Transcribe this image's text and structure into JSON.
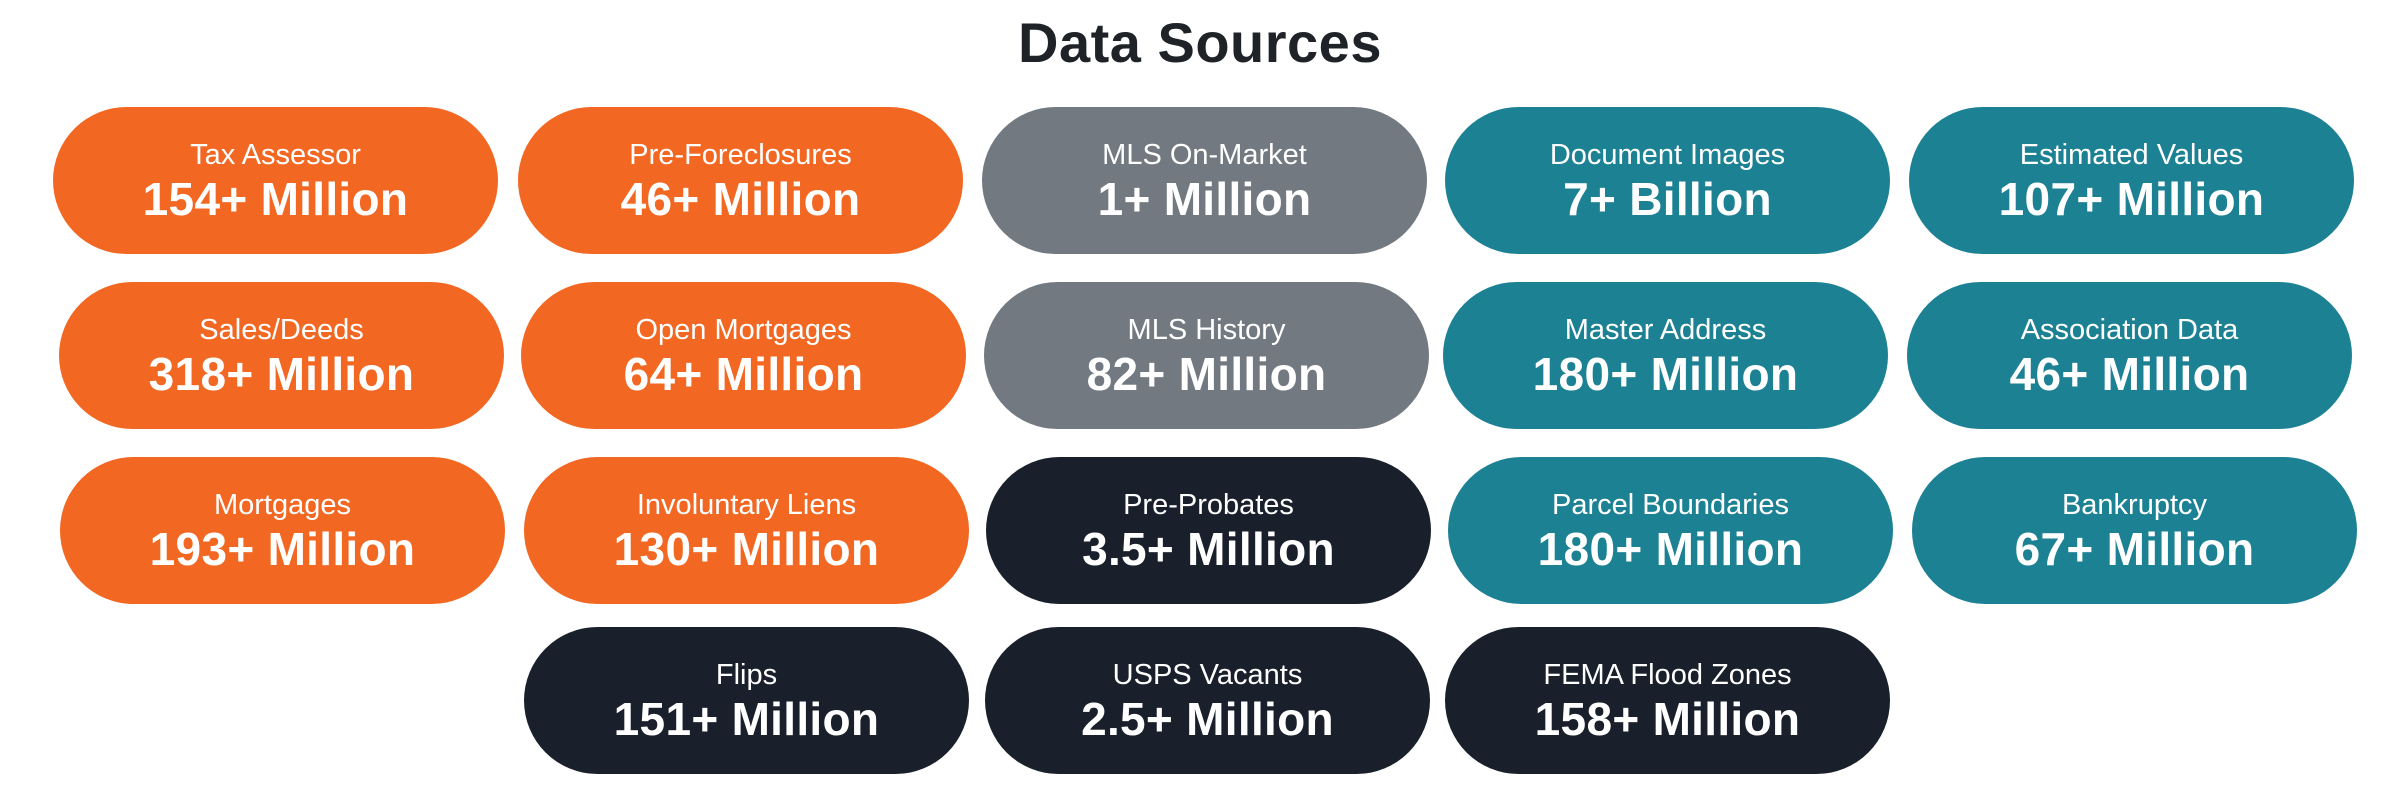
{
  "title": "Data Sources",
  "colors": {
    "orange": "#F26722",
    "gray": "#737981",
    "teal": "#1C8193",
    "navy": "#1A202B"
  },
  "cards": [
    {
      "label": "Tax Assessor",
      "value": "154+ Million",
      "color": "orange"
    },
    {
      "label": "Pre-Foreclosures",
      "value": "46+ Million",
      "color": "orange"
    },
    {
      "label": "MLS On-Market",
      "value": "1+ Million",
      "color": "gray"
    },
    {
      "label": "Document Images",
      "value": "7+ Billion",
      "color": "teal"
    },
    {
      "label": "Estimated Values",
      "value": "107+ Million",
      "color": "teal"
    },
    {
      "label": "Sales/Deeds",
      "value": "318+ Million",
      "color": "orange"
    },
    {
      "label": "Open Mortgages",
      "value": "64+ Million",
      "color": "orange"
    },
    {
      "label": "MLS History",
      "value": "82+ Million",
      "color": "gray"
    },
    {
      "label": "Master Address",
      "value": "180+ Million",
      "color": "teal"
    },
    {
      "label": "Association Data",
      "value": "46+ Million",
      "color": "teal"
    },
    {
      "label": "Mortgages",
      "value": "193+ Million",
      "color": "orange"
    },
    {
      "label": "Involuntary Liens",
      "value": "130+ Million",
      "color": "orange"
    },
    {
      "label": "Pre-Probates",
      "value": "3.5+ Million",
      "color": "navy"
    },
    {
      "label": "Parcel Boundaries",
      "value": "180+ Million",
      "color": "teal"
    },
    {
      "label": "Bankruptcy",
      "value": "67+ Million",
      "color": "teal"
    },
    {
      "label": "Flips",
      "value": "151+ Million",
      "color": "navy"
    },
    {
      "label": "USPS Vacants",
      "value": "2.5+ Million",
      "color": "navy"
    },
    {
      "label": "FEMA Flood Zones",
      "value": "158+ Million",
      "color": "navy"
    }
  ]
}
